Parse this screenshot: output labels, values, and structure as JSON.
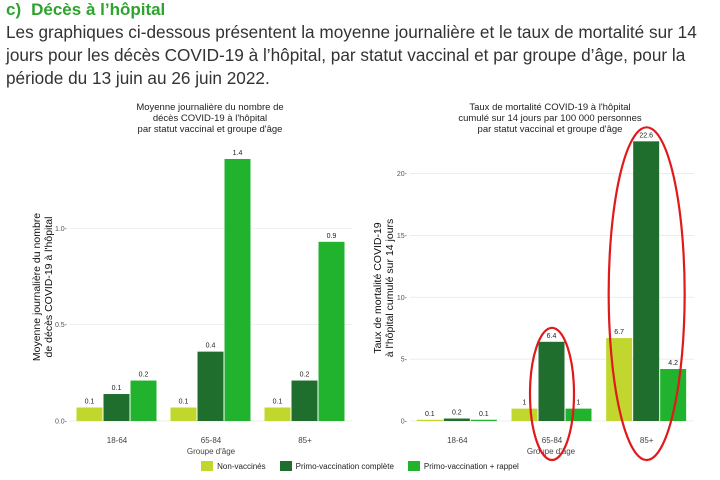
{
  "section": {
    "letter": "c)",
    "title": "Décès à l’hôpital",
    "intro": "Les graphiques ci-dessous présentent la moyenne journalière et le taux de mortalité sur 14 jours pour les décès COVID-19 à l’hôpital, par statut vaccinal et par groupe d’âge, pour la période du 13 juin au 26 juin 2022."
  },
  "colors": {
    "non_vaccines": "#c1d72e",
    "primo_complete": "#1f6e2e",
    "primo_rappel": "#21b32e",
    "annotation": "#e0191b",
    "heading": "#2ea32e"
  },
  "legend": [
    {
      "label": "Non-vaccinés",
      "color_key": "non_vaccines"
    },
    {
      "label": "Primo-vaccination complète",
      "color_key": "primo_complete"
    },
    {
      "label": "Primo-vaccination + rappel",
      "color_key": "primo_rappel"
    }
  ],
  "chart_data": [
    {
      "type": "bar",
      "title_lines": [
        "Moyenne journalière du nombre de",
        "décès COVID-19 à l'hôpital",
        "par statut vaccinal et groupe d'âge"
      ],
      "ylabel_lines": [
        "Moyenne journalière du nombre",
        "de décès COVID-19 à l'hôpital"
      ],
      "xlabel": "Groupe d'âge",
      "categories": [
        "18-64",
        "65-84",
        "85+"
      ],
      "ylim": [
        0,
        1.5
      ],
      "yticks": [
        0.0,
        0.5,
        1.0
      ],
      "ytick_labels": [
        "0.0-",
        "0.5-",
        "1.0-"
      ],
      "series": [
        {
          "name": "Non-vaccinés",
          "values": [
            0.07,
            0.07,
            0.07
          ],
          "labels": [
            "0.1",
            "0.1",
            "0.1"
          ]
        },
        {
          "name": "Primo-vaccination complète",
          "values": [
            0.14,
            0.36,
            0.21
          ],
          "labels": [
            "0.1",
            "0.4",
            "0.2"
          ]
        },
        {
          "name": "Primo-vaccination + rappel",
          "values": [
            0.21,
            1.36,
            0.93
          ],
          "labels": [
            "0.2",
            "1.4",
            "0.9"
          ]
        }
      ],
      "grid": true
    },
    {
      "type": "bar",
      "title_lines": [
        "Taux de mortalité COVID-19 à l'hôpital",
        "cumulé sur 14 jours par 100 000 personnes",
        "par statut vaccinal et groupe d'âge"
      ],
      "ylabel_lines": [
        "Taux de mortalité COVID-19",
        "à l'hôpital cumulé sur 14 jours"
      ],
      "xlabel": "Groupe d'âge",
      "categories": [
        "18-64",
        "65-84",
        "85+"
      ],
      "ylim": [
        0,
        24
      ],
      "yticks": [
        0,
        5,
        10,
        15,
        20
      ],
      "ytick_labels": [
        "0-",
        "5-",
        "10-",
        "15-",
        "20-"
      ],
      "series": [
        {
          "name": "Non-vaccinés",
          "values": [
            0.1,
            1.0,
            6.7
          ],
          "labels": [
            "0.1",
            "1",
            "6.7"
          ]
        },
        {
          "name": "Primo-vaccination complète",
          "values": [
            0.2,
            6.4,
            22.6
          ],
          "labels": [
            "0.2",
            "6.4",
            "22.6"
          ]
        },
        {
          "name": "Primo-vaccination + rappel",
          "values": [
            0.1,
            1.0,
            4.2
          ],
          "labels": [
            "0.1",
            "1",
            "4.2"
          ]
        }
      ],
      "grid": true,
      "annotations": [
        {
          "kind": "ellipse",
          "around_category": "65-84"
        },
        {
          "kind": "ellipse",
          "around_category": "85+"
        }
      ]
    }
  ]
}
